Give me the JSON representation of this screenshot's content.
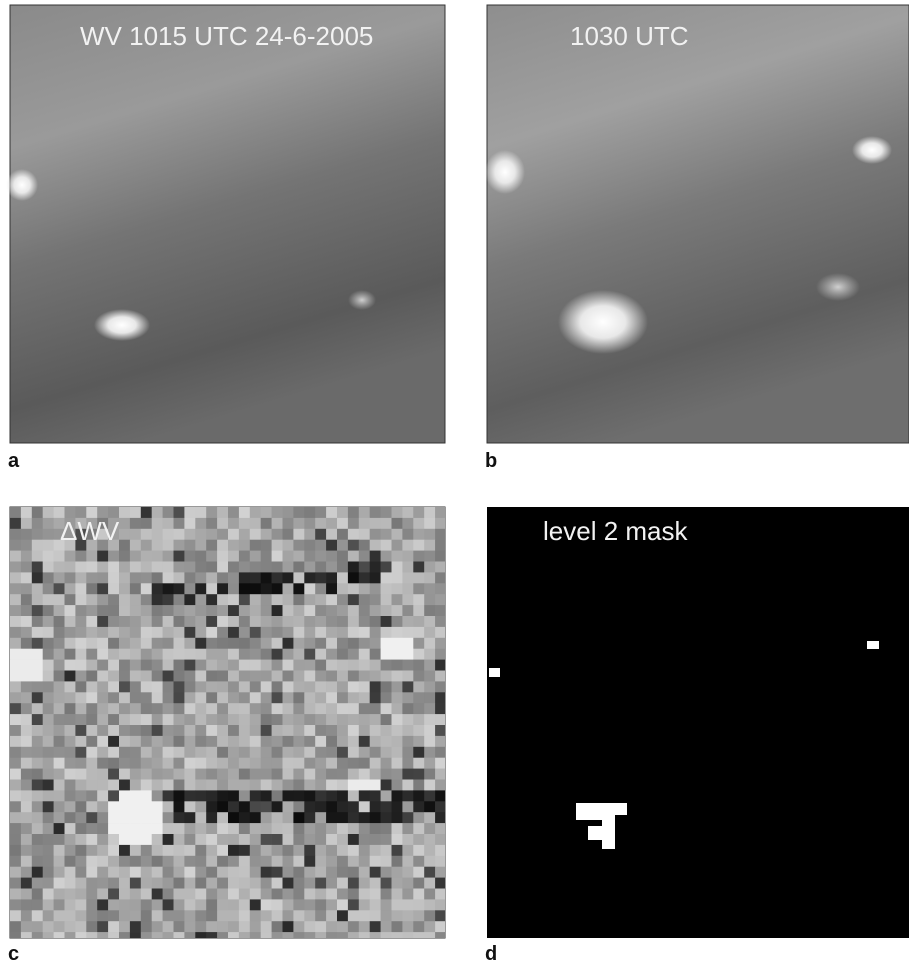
{
  "panels": [
    {
      "label": "a",
      "caption": "WV 1015 UTC 24-6-2005"
    },
    {
      "label": "b",
      "caption": "1030 UTC"
    },
    {
      "label": "c",
      "caption": "ΔWV"
    },
    {
      "label": "d",
      "caption": "level 2 mask"
    }
  ]
}
